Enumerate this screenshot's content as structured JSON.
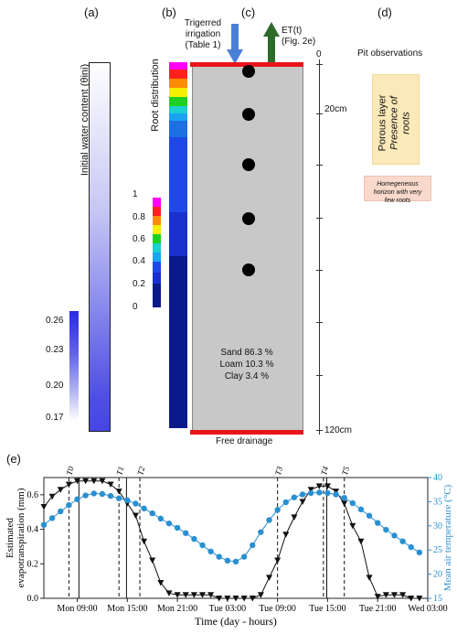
{
  "panels": {
    "a": "(a)",
    "b": "(b)",
    "c": "(c)",
    "d": "(d)",
    "e": "(e)"
  },
  "panel_a": {
    "title": "Initial water content (θini)",
    "legend_ticks": [
      "0.26",
      "0.23",
      "0.20",
      "0.17"
    ]
  },
  "panel_b": {
    "title": "Root distribution",
    "legend_ticks": [
      "1",
      "0.8",
      "0.6",
      "0.4",
      "0.2",
      "0"
    ]
  },
  "panel_c": {
    "irrigation": [
      "Trigerred",
      "irrigation",
      "(Table 1)"
    ],
    "et": [
      "ET(t)",
      "(Fig. 2e)"
    ],
    "soil": [
      "Sand 86.3 %",
      "Loam 10.3 %",
      "Clay 3.4 %"
    ],
    "bottom": "Free drainage",
    "depth_labels": [
      "0",
      "20cm",
      "120cm"
    ],
    "colors": {
      "irrigation": "#4a7fd6",
      "et": "#2e6b2b",
      "boundary": "#e8141a",
      "soil": "#c8c8c8"
    }
  },
  "panel_d": {
    "title": "Pit observations",
    "porous": [
      "Porous layer",
      "Presence of",
      "roots"
    ],
    "homogeneous": [
      "Homegeneous",
      "horizon with very",
      "few roots"
    ]
  },
  "chart_data": {
    "type": "line",
    "xlabel": "Time (day - hours)",
    "ylabel_left": "Estimated evapotranspiration (mm)",
    "ylabel_right": "Mean air temperature (°C)",
    "x_tick_labels": [
      "Mon 09:00",
      "Mon 15:00",
      "Mon 21:00",
      "Tue 03:00",
      "Tue 09:00",
      "Tue 15:00",
      "Tue 21:00",
      "Wed 03:00"
    ],
    "x_ticks_hours": [
      9,
      15,
      21,
      27,
      33,
      39,
      45,
      51
    ],
    "xlim_hours": [
      5,
      51
    ],
    "ylim_left": [
      0,
      0.7
    ],
    "ylim_right": [
      15,
      40
    ],
    "yticks_left": [
      "0.0",
      "0.2",
      "0.4",
      "0.6"
    ],
    "yticks_right": [
      "15",
      "20",
      "25",
      "30",
      "35",
      "40"
    ],
    "irrigation_events": [
      {
        "label": "T0",
        "hour": 8
      },
      {
        "label": "T1",
        "hour": 14
      },
      {
        "label": "T2",
        "hour": 16.5
      },
      {
        "label": "T3",
        "hour": 33
      },
      {
        "label": "T4",
        "hour": 38.5
      },
      {
        "label": "T5",
        "hour": 41
      }
    ],
    "solid_lines_hours": [
      9.2,
      14.9,
      38.9
    ],
    "series": [
      {
        "name": "",
        "axis": "left",
        "color": "#111111",
        "marker": "triangle-down",
        "x": [
          5,
          6,
          7,
          8,
          9,
          10,
          11,
          12,
          13,
          14,
          15,
          16,
          17,
          18,
          19,
          20,
          21,
          22,
          23,
          24,
          25,
          26,
          27,
          28,
          29,
          30,
          31,
          32,
          33,
          34,
          35,
          36,
          37,
          38,
          39,
          40,
          41,
          42,
          43,
          44,
          45,
          46,
          47,
          48,
          49,
          50
        ],
        "y": [
          0.53,
          0.59,
          0.63,
          0.66,
          0.68,
          0.68,
          0.68,
          0.68,
          0.66,
          0.62,
          0.55,
          0.48,
          0.33,
          0.22,
          0.09,
          0.03,
          0.02,
          0.02,
          0.02,
          0.02,
          0.02,
          0.0,
          0.0,
          0.0,
          0.0,
          0.0,
          0.02,
          0.12,
          0.22,
          0.37,
          0.47,
          0.56,
          0.63,
          0.65,
          0.65,
          0.62,
          0.55,
          0.42,
          0.33,
          0.12,
          0.01,
          0.02,
          0.02,
          0.02,
          0.0,
          0.0
        ]
      },
      {
        "name": "",
        "axis": "right",
        "color": "#2a8fd1",
        "marker": "circle",
        "x": [
          5,
          6,
          7,
          8,
          9,
          10,
          11,
          12,
          13,
          14,
          15,
          16,
          17,
          18,
          19,
          20,
          21,
          22,
          23,
          24,
          25,
          26,
          27,
          28,
          29,
          30,
          31,
          32,
          33,
          34,
          35,
          36,
          37,
          38,
          39,
          40,
          41,
          42,
          43,
          44,
          45,
          46,
          47,
          48,
          49,
          50
        ],
        "y": [
          30.2,
          31.6,
          33.0,
          34.3,
          35.5,
          36.3,
          36.7,
          36.6,
          36.2,
          35.7,
          35.3,
          34.6,
          33.6,
          32.6,
          31.5,
          30.5,
          29.6,
          28.5,
          27.3,
          26.0,
          24.7,
          23.6,
          22.8,
          22.6,
          23.6,
          26.0,
          28.7,
          31.2,
          33.3,
          34.9,
          35.9,
          36.5,
          36.8,
          36.9,
          36.8,
          36.5,
          35.8,
          34.7,
          33.4,
          32.1,
          30.6,
          29.2,
          28.0,
          26.8,
          25.6,
          24.5
        ]
      }
    ]
  }
}
